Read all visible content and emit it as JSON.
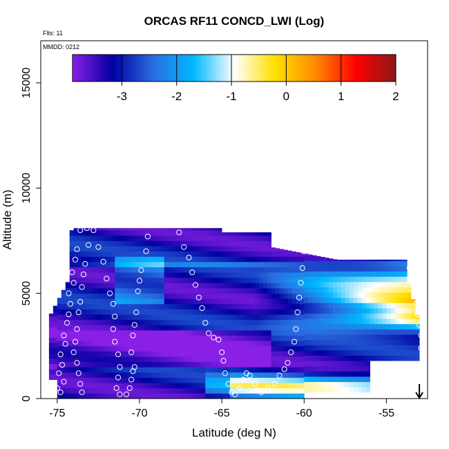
{
  "chart_data": {
    "type": "heatmap",
    "title": "ORCAS RF11 CONCD_LWI (Log)",
    "annotations": {
      "flights": "Flts: 11",
      "date": "MMDD: 0212"
    },
    "xlabel": "Latitude (deg N)",
    "ylabel": "Altitude (m)",
    "xlim": [
      -76,
      -52.5
    ],
    "ylim": [
      0,
      17000
    ],
    "x_ticks": [
      -75,
      -70,
      -65,
      -60,
      -55
    ],
    "y_ticks": [
      0,
      5000,
      10000,
      15000
    ],
    "colorbar": {
      "range": [
        -3.9,
        2
      ],
      "ticks": [
        -3,
        -2,
        -1,
        0,
        1,
        2
      ],
      "colors": [
        "#8a1fe6",
        "#0000a0",
        "#2a6de0",
        "#00b8ff",
        "#ffffff",
        "#ffe000",
        "#ff8c00",
        "#ff0000",
        "#8b1a1a"
      ]
    },
    "marker": {
      "latitude": -53,
      "label": "arrow-down"
    },
    "flight_points": [
      [
        -75.0,
        500
      ],
      [
        -74.8,
        300
      ],
      [
        -74.6,
        800
      ],
      [
        -74.9,
        1200
      ],
      [
        -74.7,
        1600
      ],
      [
        -74.8,
        2100
      ],
      [
        -74.5,
        2600
      ],
      [
        -74.6,
        3000
      ],
      [
        -74.4,
        3600
      ],
      [
        -74.3,
        4000
      ],
      [
        -74.2,
        4500
      ],
      [
        -74.3,
        5000
      ],
      [
        -74.0,
        5500
      ],
      [
        -74.1,
        6000
      ],
      [
        -73.9,
        6600
      ],
      [
        -73.8,
        7100
      ],
      [
        -73.6,
        8000
      ],
      [
        -73.2,
        8100
      ],
      [
        -73.1,
        7300
      ],
      [
        -73.3,
        6400
      ],
      [
        -73.4,
        5900
      ],
      [
        -73.5,
        5300
      ],
      [
        -73.6,
        4600
      ],
      [
        -73.7,
        4100
      ],
      [
        -73.8,
        3300
      ],
      [
        -73.9,
        2700
      ],
      [
        -74.0,
        2200
      ],
      [
        -73.8,
        1700
      ],
      [
        -73.7,
        1200
      ],
      [
        -73.6,
        700
      ],
      [
        -73.5,
        300
      ],
      [
        -72.8,
        8000
      ],
      [
        -72.5,
        7200
      ],
      [
        -72.2,
        6500
      ],
      [
        -72.0,
        5700
      ],
      [
        -71.8,
        5000
      ],
      [
        -71.6,
        4500
      ],
      [
        -71.5,
        3900
      ],
      [
        -71.6,
        3300
      ],
      [
        -71.5,
        2700
      ],
      [
        -71.3,
        2100
      ],
      [
        -71.2,
        1500
      ],
      [
        -71.3,
        1000
      ],
      [
        -71.4,
        500
      ],
      [
        -71.2,
        200
      ],
      [
        -70.8,
        200
      ],
      [
        -70.6,
        500
      ],
      [
        -70.5,
        900
      ],
      [
        -70.4,
        1300
      ],
      [
        -70.3,
        1500
      ],
      [
        -70.5,
        2200
      ],
      [
        -70.4,
        3000
      ],
      [
        -70.3,
        3500
      ],
      [
        -70.2,
        4100
      ],
      [
        -70.1,
        5100
      ],
      [
        -70.0,
        5600
      ],
      [
        -69.9,
        6100
      ],
      [
        -69.6,
        7000
      ],
      [
        -69.5,
        7700
      ],
      [
        -69.4,
        8300
      ],
      [
        -67.6,
        7900
      ],
      [
        -67.3,
        7200
      ],
      [
        -67.0,
        6700
      ],
      [
        -66.8,
        6000
      ],
      [
        -66.6,
        5400
      ],
      [
        -66.4,
        4800
      ],
      [
        -66.2,
        4300
      ],
      [
        -66.0,
        3600
      ],
      [
        -65.8,
        3100
      ],
      [
        -65.5,
        2900
      ],
      [
        -65.2,
        2800
      ],
      [
        -65.0,
        2200
      ],
      [
        -64.9,
        1800
      ],
      [
        -64.8,
        1200
      ],
      [
        -64.6,
        700
      ],
      [
        -64.4,
        300
      ],
      [
        -64.2,
        200
      ],
      [
        -63.9,
        500
      ],
      [
        -63.7,
        900
      ],
      [
        -63.5,
        1200
      ],
      [
        -63.3,
        1100
      ],
      [
        -63.0,
        700
      ],
      [
        -62.8,
        400
      ],
      [
        -62.6,
        300
      ],
      [
        -62.2,
        500
      ],
      [
        -61.8,
        700
      ],
      [
        -61.5,
        1100
      ],
      [
        -61.2,
        1400
      ],
      [
        -61.0,
        1700
      ],
      [
        -60.8,
        2200
      ],
      [
        -60.6,
        2700
      ],
      [
        -60.5,
        3300
      ],
      [
        -60.4,
        4100
      ],
      [
        -60.3,
        4800
      ],
      [
        -60.2,
        5500
      ],
      [
        -60.1,
        6200
      ],
      [
        -60.0,
        7000
      ],
      [
        -59.9,
        7800
      ],
      [
        -53.6,
        6200
      ],
      [
        -53.4,
        5600
      ],
      [
        -53.3,
        5000
      ],
      [
        -53.2,
        4500
      ],
      [
        -53.1,
        4000
      ],
      [
        -53.0,
        3500
      ],
      [
        -52.9,
        3000
      ],
      [
        -52.9,
        2400
      ],
      [
        -52.8,
        2100
      ]
    ]
  }
}
